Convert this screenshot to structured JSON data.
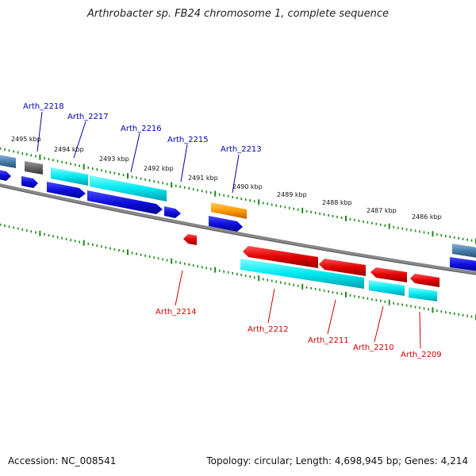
{
  "title": "Arthrobacter sp. FB24 chromosome 1, complete sequence",
  "accession": "Accession: NC_008541",
  "topology": "Topology: circular; Length: 4,698,945 bp; Genes: 4,214",
  "kbp_labels": [
    "2495 kbp",
    "2494 kbp",
    "2493 kbp",
    "2492 kbp",
    "2491 kbp",
    "2490 kbp",
    "2489 kbp",
    "2488 kbp",
    "2487 kbp",
    "2486 kbp"
  ],
  "genes_forward": [
    "Arth_2218",
    "Arth_2217",
    "Arth_2216",
    "Arth_2215",
    "Arth_2213"
  ],
  "genes_reverse": [
    "Arth_2214",
    "Arth_2212",
    "Arth_2211",
    "Arth_2210",
    "Arth_2209"
  ],
  "colors": {
    "forward_cds": "#1010e0",
    "reverse_cds": "#e00000",
    "gene": "#00e8f0",
    "rna": "#ff9900",
    "steel": "#4a7fb0",
    "gray": "#666666",
    "tick": "#1a8a1a",
    "backbone": "#888888",
    "forward_label": "#0000aa",
    "reverse_label": "#cc0000"
  }
}
